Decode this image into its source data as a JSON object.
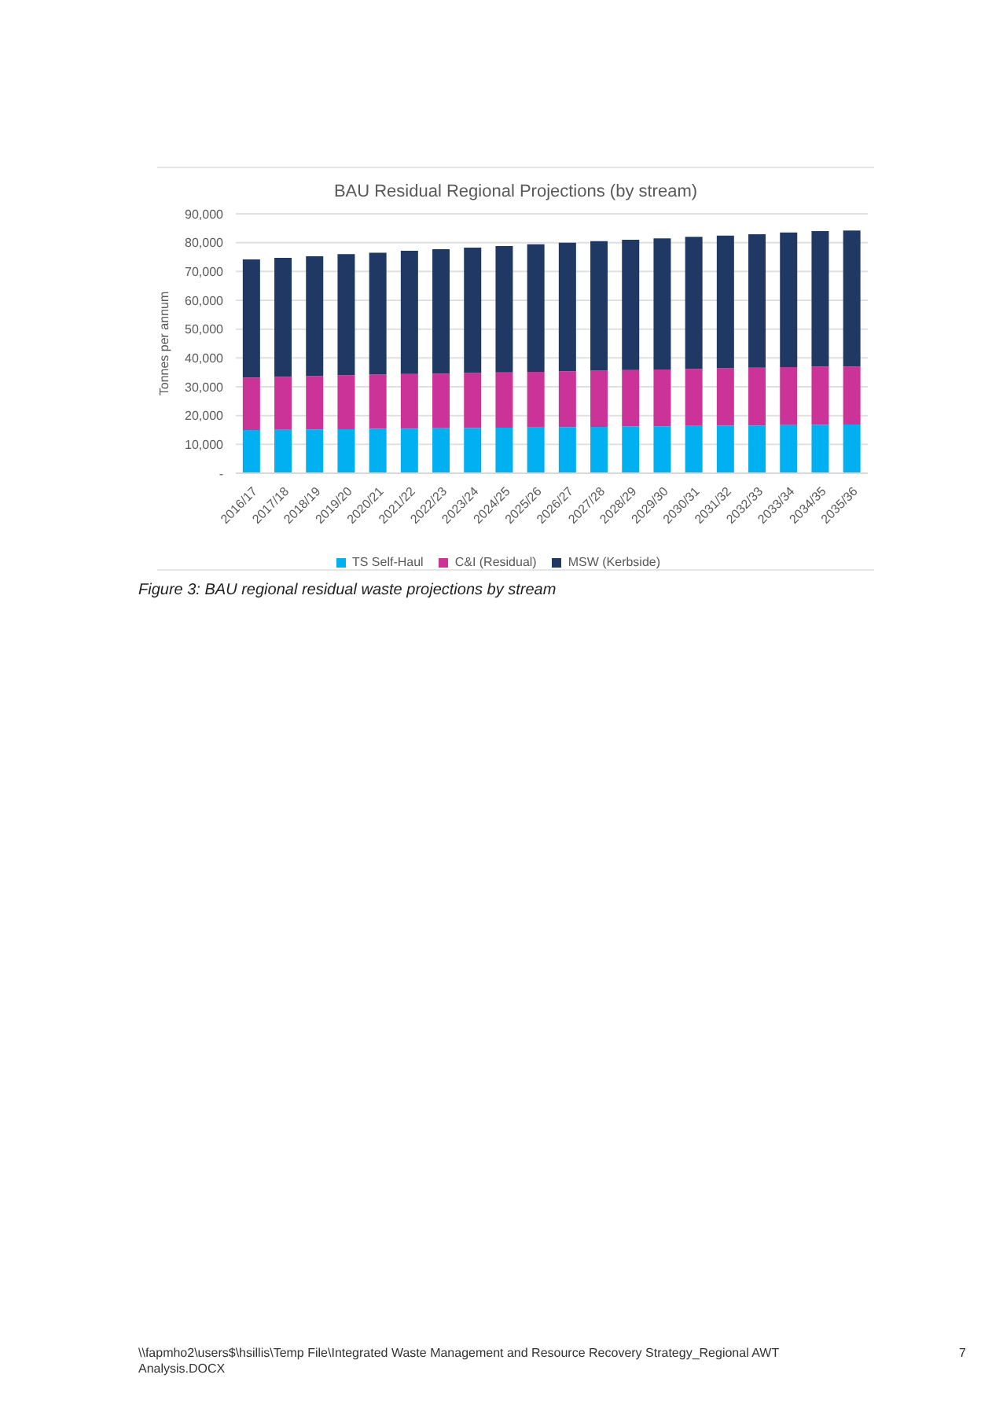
{
  "chart_data": {
    "type": "bar",
    "stacked": true,
    "title": "BAU Residual Regional Projections (by stream)",
    "ylabel": "Tonnes per annum",
    "categories": [
      "2016/17",
      "2017/18",
      "2018/19",
      "2019/20",
      "2020/21",
      "2021/22",
      "2022/23",
      "2023/24",
      "2024/25",
      "2025/26",
      "2026/27",
      "2027/28",
      "2028/29",
      "2029/30",
      "2030/31",
      "2031/32",
      "2032/33",
      "2033/34",
      "2034/35",
      "2035/36"
    ],
    "series": [
      {
        "name": "TS Self-Haul",
        "color": "#00b0f0",
        "values": [
          15000,
          15100,
          15200,
          15300,
          15400,
          15500,
          15600,
          15700,
          15800,
          15900,
          16000,
          16100,
          16200,
          16300,
          16400,
          16500,
          16600,
          16700,
          16800,
          16900
        ]
      },
      {
        "name": "C&I (Residual)",
        "color": "#cc3399",
        "values": [
          18200,
          18400,
          18500,
          18700,
          18800,
          18900,
          19000,
          19100,
          19200,
          19300,
          19400,
          19500,
          19600,
          19700,
          19800,
          19900,
          20000,
          20100,
          20200,
          20100
        ]
      },
      {
        "name": "MSW (Kerbside)",
        "color": "#1f3864",
        "values": [
          41000,
          41200,
          41600,
          42000,
          42300,
          42800,
          43100,
          43500,
          43800,
          44200,
          44600,
          44900,
          45200,
          45500,
          45800,
          46000,
          46300,
          46700,
          47000,
          47200
        ]
      }
    ],
    "ylim": [
      0,
      90000
    ],
    "yticks": [
      {
        "value": 0,
        "label": "-"
      },
      {
        "value": 10000,
        "label": "10,000"
      },
      {
        "value": 20000,
        "label": "20,000"
      },
      {
        "value": 30000,
        "label": "30,000"
      },
      {
        "value": 40000,
        "label": "40,000"
      },
      {
        "value": 50000,
        "label": "50,000"
      },
      {
        "value": 60000,
        "label": "60,000"
      },
      {
        "value": 70000,
        "label": "70,000"
      },
      {
        "value": 80000,
        "label": "80,000"
      },
      {
        "value": 90000,
        "label": "90,000"
      }
    ],
    "grid": "y",
    "legend": "bottom",
    "annotations": [
      "Figure 3: BAU regional residual waste projections by stream",
      "\\\\fapmho2\\users$\\hsillis\\Temp File\\Integrated Waste Management and Resource Recovery Strategy_Regional AWT Analysis.DOCX",
      "7"
    ]
  }
}
